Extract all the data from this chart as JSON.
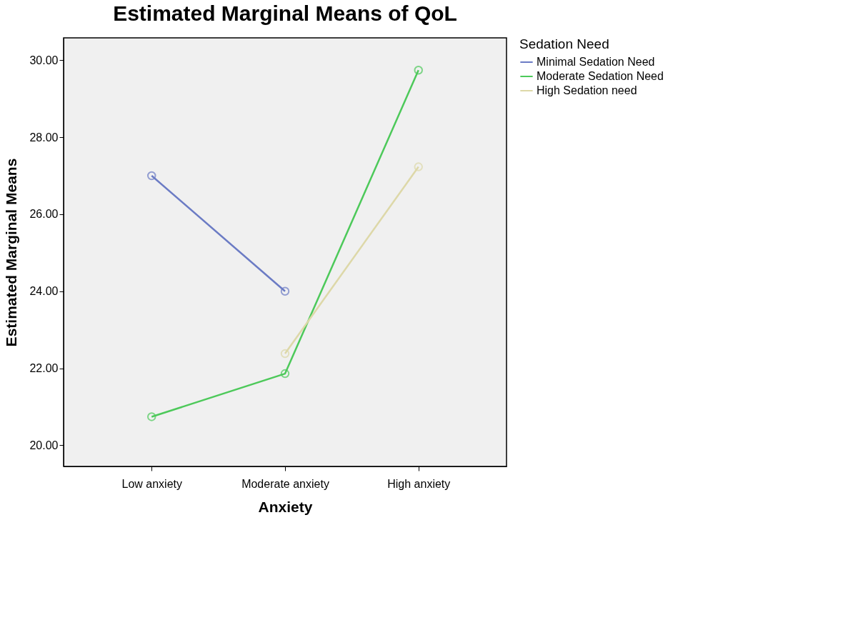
{
  "chart_data": {
    "type": "line",
    "title": "Estimated Marginal Means of QoL",
    "xlabel": "Anxiety",
    "ylabel": "Estimated Marginal Means",
    "legend_title": "Sedation Need",
    "categories": [
      "Low anxiety",
      "Moderate anxiety",
      "High anxiety"
    ],
    "series": [
      {
        "name": "Minimal Sedation Need",
        "color": "#6b7bc4",
        "values": [
          27.0,
          24.0,
          null
        ]
      },
      {
        "name": "Moderate Sedation Need",
        "color": "#4dc95a",
        "values": [
          20.74,
          21.86,
          29.74
        ]
      },
      {
        "name": "High Sedation need",
        "color": "#ddd8a8",
        "values": [
          null,
          22.38,
          27.23
        ]
      }
    ],
    "ylim": [
      19.45,
      30.58
    ],
    "yticks": [
      {
        "value": 20,
        "label": "20.00"
      },
      {
        "value": 22,
        "label": "22.00"
      },
      {
        "value": 24,
        "label": "24.00"
      },
      {
        "value": 26,
        "label": "26.00"
      },
      {
        "value": 28,
        "label": "28.00"
      },
      {
        "value": 30,
        "label": "30.00"
      }
    ],
    "grid": false,
    "legend": "top right",
    "marker": "circle",
    "line_style": "solid"
  }
}
